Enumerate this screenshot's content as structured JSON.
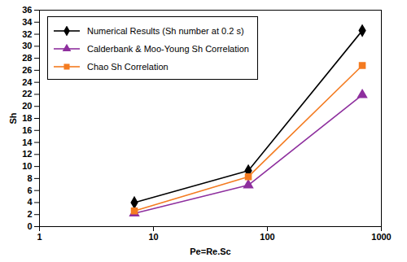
{
  "chart_data": {
    "type": "line",
    "x_label": "Pe=Re.Sc",
    "y_label": "Sh",
    "log": "x",
    "grid": false,
    "legend": "top-left",
    "x": [
      6.8,
      68,
      680
    ],
    "xlim": [
      1,
      1000
    ],
    "xticks": [
      1,
      10,
      100,
      1000
    ],
    "ylim": [
      0,
      36
    ],
    "yticks": [
      0,
      2,
      4,
      6,
      8,
      10,
      12,
      14,
      16,
      18,
      20,
      22,
      24,
      26,
      28,
      30,
      32,
      34,
      36
    ],
    "series": [
      {
        "name": "Numerical Results (Sh number at 0.2 s)",
        "color": "#000000",
        "marker": "diamond",
        "values": [
          4.0,
          9.3,
          32.6
        ]
      },
      {
        "name": "Calderbank & Moo-Young Sh Correlation",
        "color": "#8e2f9e",
        "marker": "triangle",
        "values": [
          2.2,
          6.9,
          21.9
        ]
      },
      {
        "name": "Chao Sh Correlation",
        "color": "#f47b20",
        "marker": "square",
        "values": [
          2.6,
          8.3,
          26.8
        ]
      }
    ]
  }
}
